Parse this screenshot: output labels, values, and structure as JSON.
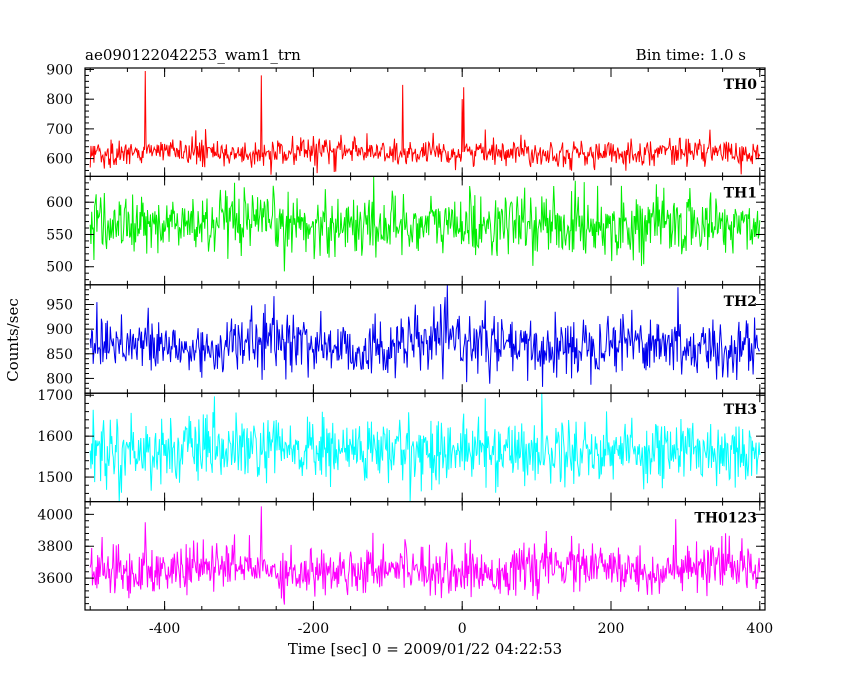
{
  "chart_data": {
    "type": "line",
    "title": "ae090122042253_wam1_trn",
    "subtitle": "Bin time: 1.0 s",
    "xlabel": "Time [sec] 0 = 2009/01/22 04:22:53",
    "ylabel": "Counts/sec",
    "xlim": [
      -507,
      407
    ],
    "x_range": [
      -500,
      400
    ],
    "x_ticks": [
      -400,
      -200,
      0,
      200,
      400
    ],
    "grid": false,
    "panels": [
      {
        "name": "TH0",
        "color": "#ff0000",
        "ylim": [
          540,
          905
        ],
        "y_ticks": [
          600,
          700,
          800,
          900
        ],
        "mean": 620,
        "sd": 22,
        "wave_amp": 6,
        "spikes": [
          {
            "x": -426,
            "y": 880
          },
          {
            "x": -426,
            "y": 895
          },
          {
            "x": -270,
            "y": 905
          },
          {
            "x": -270,
            "y": 880
          },
          {
            "x": -80,
            "y": 848
          },
          {
            "x": 2,
            "y": 840
          },
          {
            "x": 0,
            "y": 800
          }
        ]
      },
      {
        "name": "TH1",
        "color": "#00ee00",
        "ylim": [
          472,
          640
        ],
        "y_ticks": [
          500,
          550,
          600
        ],
        "mean": 565,
        "sd": 24,
        "wave_amp": 0,
        "spikes": []
      },
      {
        "name": "TH2",
        "color": "#0000ee",
        "ylim": [
          770,
          990
        ],
        "y_ticks": [
          800,
          850,
          900,
          950
        ],
        "mean": 868,
        "sd": 30,
        "wave_amp": 10,
        "spikes": [
          {
            "x": 290,
            "y": 985
          }
        ]
      },
      {
        "name": "TH3",
        "color": "#00ffff",
        "ylim": [
          1440,
          1705
        ],
        "y_ticks": [
          1500,
          1600,
          1700
        ],
        "mean": 1565,
        "sd": 40,
        "wave_amp": 0,
        "spikes": []
      },
      {
        "name": "TH0123",
        "color": "#ff00ff",
        "ylim": [
          3400,
          4080
        ],
        "y_ticks": [
          3600,
          3800,
          4000
        ],
        "mean": 3655,
        "sd": 75,
        "wave_amp": 20,
        "spikes": [
          {
            "x": -270,
            "y": 4050
          },
          {
            "x": -426,
            "y": 3950
          },
          {
            "x": 287,
            "y": 3970
          }
        ]
      }
    ]
  }
}
